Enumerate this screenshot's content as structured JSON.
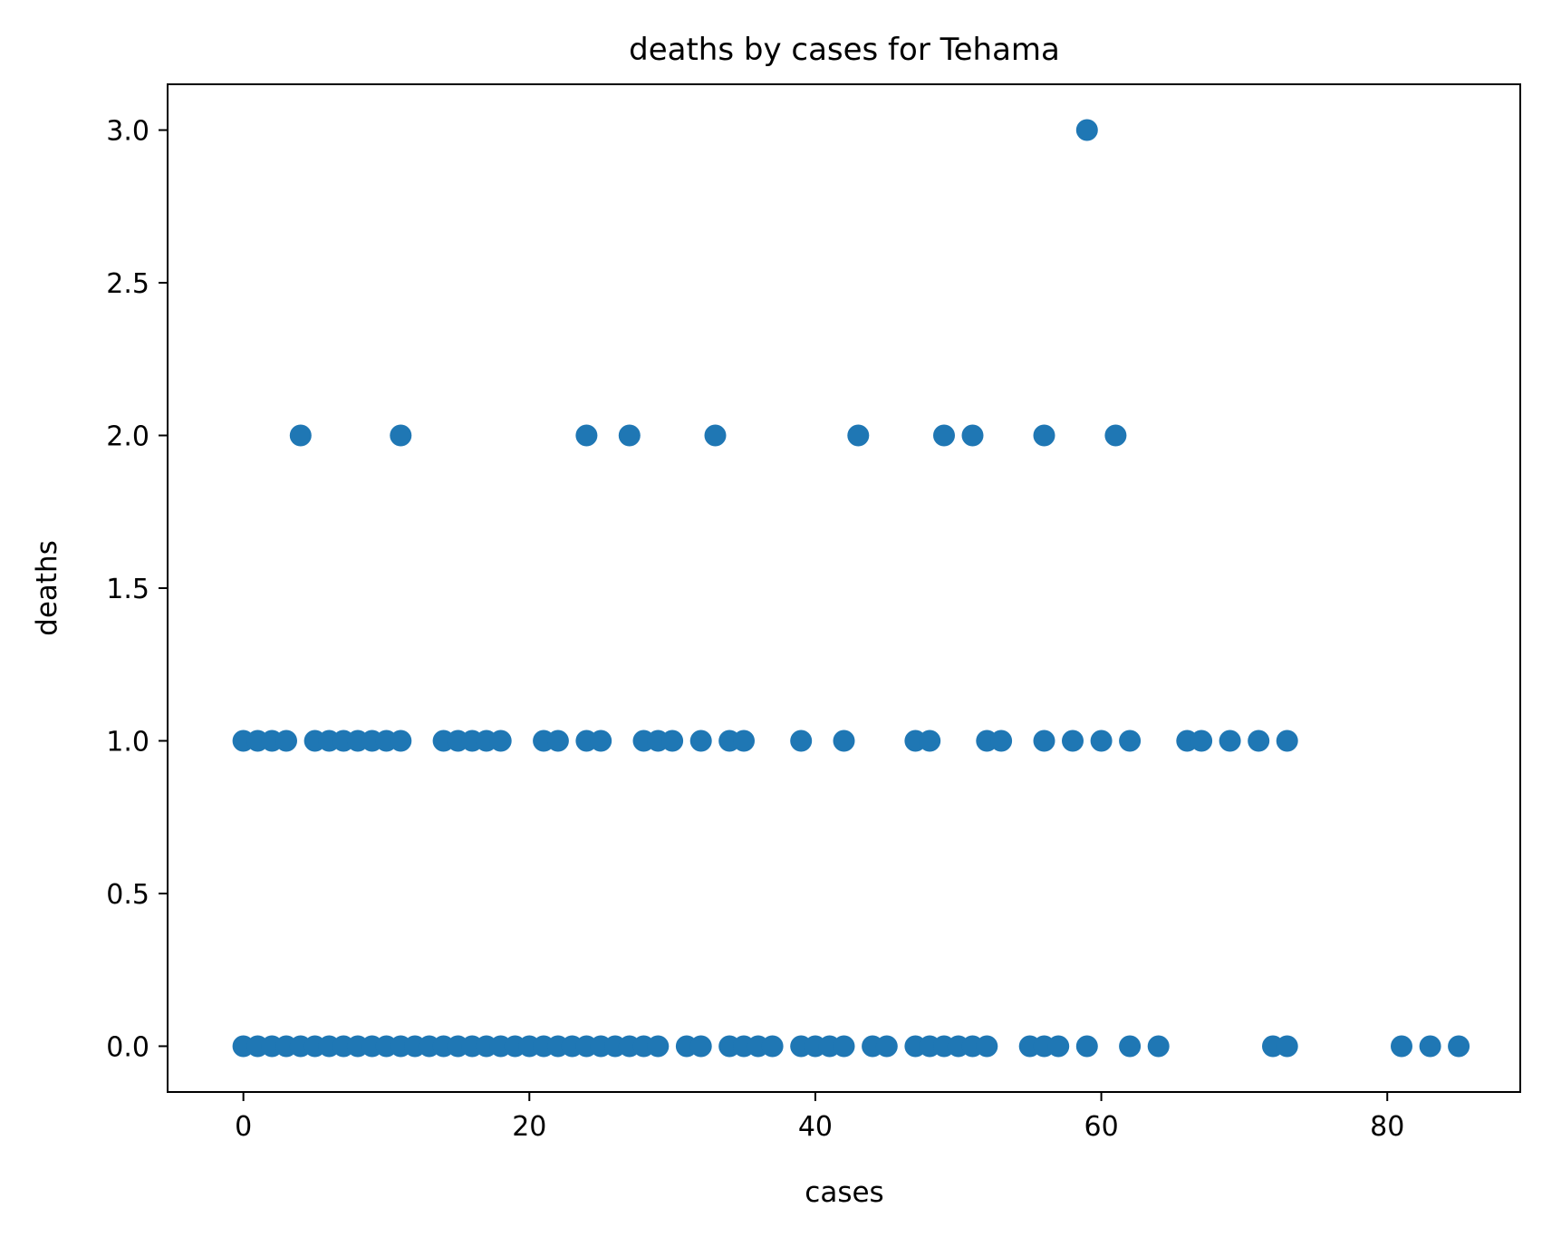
{
  "chart_data": {
    "type": "scatter",
    "title": "deaths by cases for Tehama",
    "xlabel": "cases",
    "ylabel": "deaths",
    "xlim": [
      -5.3,
      89.3
    ],
    "ylim": [
      -0.15,
      3.15
    ],
    "xticks": [
      0,
      20,
      40,
      60,
      80
    ],
    "yticks": [
      0.0,
      0.5,
      1.0,
      1.5,
      2.0,
      2.5,
      3.0
    ],
    "xtick_labels": [
      "0",
      "20",
      "40",
      "60",
      "80"
    ],
    "ytick_labels": [
      "0.0",
      "0.5",
      "1.0",
      "1.5",
      "2.0",
      "2.5",
      "3.0"
    ],
    "grid": false,
    "legend": "none",
    "marker_color": "#1f77b4",
    "series": [
      {
        "points": [
          [
            59,
            3
          ],
          [
            4,
            2
          ],
          [
            11,
            2
          ],
          [
            24,
            2
          ],
          [
            27,
            2
          ],
          [
            33,
            2
          ],
          [
            43,
            2
          ],
          [
            49,
            2
          ],
          [
            51,
            2
          ],
          [
            56,
            2
          ],
          [
            61,
            2
          ],
          [
            0,
            1
          ],
          [
            1,
            1
          ],
          [
            2,
            1
          ],
          [
            3,
            1
          ],
          [
            5,
            1
          ],
          [
            6,
            1
          ],
          [
            7,
            1
          ],
          [
            8,
            1
          ],
          [
            9,
            1
          ],
          [
            10,
            1
          ],
          [
            11,
            1
          ],
          [
            14,
            1
          ],
          [
            15,
            1
          ],
          [
            16,
            1
          ],
          [
            17,
            1
          ],
          [
            18,
            1
          ],
          [
            21,
            1
          ],
          [
            22,
            1
          ],
          [
            24,
            1
          ],
          [
            25,
            1
          ],
          [
            28,
            1
          ],
          [
            29,
            1
          ],
          [
            30,
            1
          ],
          [
            32,
            1
          ],
          [
            34,
            1
          ],
          [
            35,
            1
          ],
          [
            39,
            1
          ],
          [
            42,
            1
          ],
          [
            47,
            1
          ],
          [
            48,
            1
          ],
          [
            52,
            1
          ],
          [
            53,
            1
          ],
          [
            56,
            1
          ],
          [
            58,
            1
          ],
          [
            60,
            1
          ],
          [
            62,
            1
          ],
          [
            66,
            1
          ],
          [
            67,
            1
          ],
          [
            69,
            1
          ],
          [
            71,
            1
          ],
          [
            73,
            1
          ],
          [
            0,
            0
          ],
          [
            1,
            0
          ],
          [
            2,
            0
          ],
          [
            3,
            0
          ],
          [
            4,
            0
          ],
          [
            5,
            0
          ],
          [
            6,
            0
          ],
          [
            7,
            0
          ],
          [
            8,
            0
          ],
          [
            9,
            0
          ],
          [
            10,
            0
          ],
          [
            11,
            0
          ],
          [
            12,
            0
          ],
          [
            13,
            0
          ],
          [
            14,
            0
          ],
          [
            15,
            0
          ],
          [
            16,
            0
          ],
          [
            17,
            0
          ],
          [
            18,
            0
          ],
          [
            19,
            0
          ],
          [
            20,
            0
          ],
          [
            21,
            0
          ],
          [
            22,
            0
          ],
          [
            23,
            0
          ],
          [
            24,
            0
          ],
          [
            25,
            0
          ],
          [
            26,
            0
          ],
          [
            27,
            0
          ],
          [
            28,
            0
          ],
          [
            29,
            0
          ],
          [
            31,
            0
          ],
          [
            32,
            0
          ],
          [
            34,
            0
          ],
          [
            35,
            0
          ],
          [
            36,
            0
          ],
          [
            37,
            0
          ],
          [
            39,
            0
          ],
          [
            40,
            0
          ],
          [
            41,
            0
          ],
          [
            42,
            0
          ],
          [
            44,
            0
          ],
          [
            45,
            0
          ],
          [
            47,
            0
          ],
          [
            48,
            0
          ],
          [
            49,
            0
          ],
          [
            50,
            0
          ],
          [
            51,
            0
          ],
          [
            52,
            0
          ],
          [
            55,
            0
          ],
          [
            56,
            0
          ],
          [
            57,
            0
          ],
          [
            59,
            0
          ],
          [
            62,
            0
          ],
          [
            64,
            0
          ],
          [
            72,
            0
          ],
          [
            73,
            0
          ],
          [
            81,
            0
          ],
          [
            83,
            0
          ],
          [
            85,
            0
          ]
        ]
      }
    ]
  }
}
